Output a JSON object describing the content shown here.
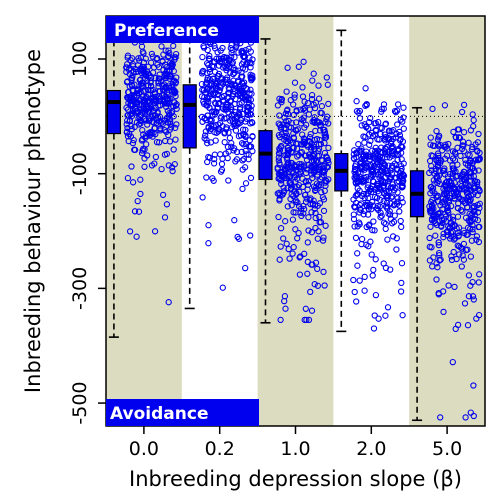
{
  "chart_data": {
    "type": "boxplot",
    "xlabel": "Inbreeding depression slope (β)",
    "ylabel": "Inbreeding behaviour phenotype",
    "categories": [
      "0.0",
      "0.2",
      "1.0",
      "2.0",
      "5.0"
    ],
    "yticks": [
      100,
      -100,
      -300,
      -500
    ],
    "ylim": [
      -540,
      175
    ],
    "reference_line": 0,
    "annotations": {
      "top": "Preference",
      "bottom": "Avoidance"
    },
    "boxes": [
      {
        "category": "0.0",
        "lower_whisker": -385,
        "q1": -30,
        "median": 25,
        "q3": 45,
        "upper_whisker": 150
      },
      {
        "category": "0.2",
        "lower_whisker": -335,
        "q1": -55,
        "median": 20,
        "q3": 55,
        "upper_whisker": 155
      },
      {
        "category": "1.0",
        "lower_whisker": -360,
        "q1": -110,
        "median": -65,
        "q3": -25,
        "upper_whisker": 135
      },
      {
        "category": "2.0",
        "lower_whisker": -375,
        "q1": -130,
        "median": -95,
        "q3": -65,
        "upper_whisker": 150
      },
      {
        "category": "5.0",
        "lower_whisker": -530,
        "q1": -175,
        "median": -135,
        "q3": -95,
        "upper_whisker": 15
      }
    ],
    "point_clouds": [
      {
        "category": "0.0",
        "center": 35,
        "spread": 45,
        "min": -385,
        "max": 150
      },
      {
        "category": "0.2",
        "center": 40,
        "spread": 55,
        "min": -340,
        "max": 155
      },
      {
        "category": "1.0",
        "center": -70,
        "spread": 60,
        "min": -355,
        "max": 140
      },
      {
        "category": "2.0",
        "center": -95,
        "spread": 55,
        "min": -370,
        "max": 150
      },
      {
        "category": "5.0",
        "center": -130,
        "spread": 60,
        "min": -525,
        "max": 20
      }
    ],
    "colors": {
      "points": "#0000ee",
      "box_fill": "#0000ee",
      "band": "#dcdcc0",
      "tag_fill": "#0000ee",
      "tag_text": "#ffffff"
    },
    "bands": [
      true,
      false,
      true,
      false,
      true
    ]
  }
}
